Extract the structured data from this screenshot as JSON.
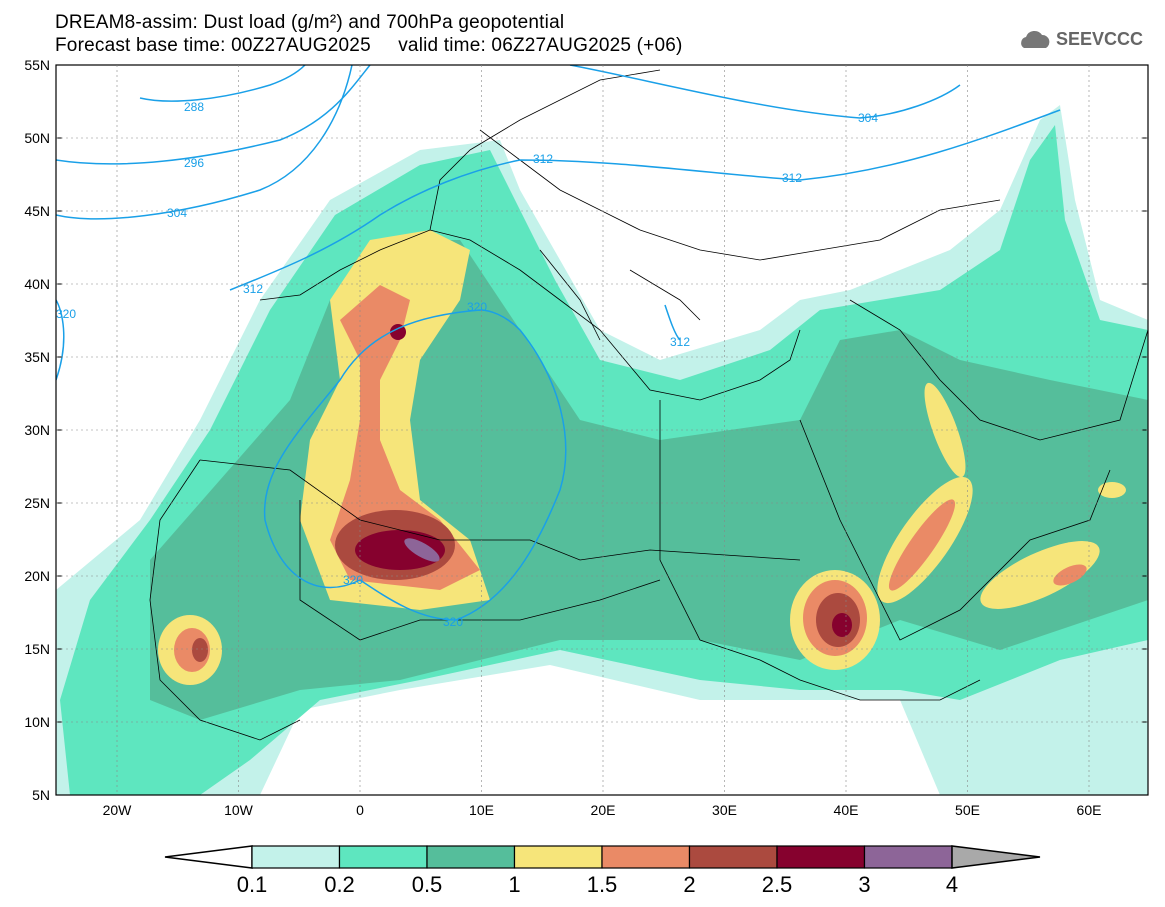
{
  "title": {
    "line1": "DREAM8-assim: Dust load (g/m²) and 700hPa geopotential",
    "line2": "Forecast base time: 00Z27AUG2025     valid time: 06Z27AUG2025 (+06)"
  },
  "logo": {
    "text": "SEEVCCC",
    "icon": "cloud-icon"
  },
  "axes": {
    "lat_labels": [
      "55N",
      "50N",
      "45N",
      "40N",
      "35N",
      "30N",
      "25N",
      "20N",
      "15N",
      "10N",
      "5N"
    ],
    "lon_labels": [
      "20W",
      "10W",
      "0",
      "10E",
      "20E",
      "30E",
      "40E",
      "50E",
      "60E"
    ]
  },
  "contour_labels": [
    "288",
    "296",
    "304",
    "312",
    "320",
    "320",
    "320",
    "320",
    "312",
    "304",
    "312",
    "312"
  ],
  "colorbar": {
    "ticks": [
      "0.1",
      "0.2",
      "0.5",
      "1",
      "1.5",
      "2",
      "2.5",
      "3",
      "4"
    ],
    "colors": [
      "#c3f2ea",
      "#5ee6bf",
      "#55be9b",
      "#f6e57a",
      "#ea8a66",
      "#ab4a3f",
      "#86012e",
      "#8d6598"
    ],
    "over_color": "#a9a9a9"
  }
}
